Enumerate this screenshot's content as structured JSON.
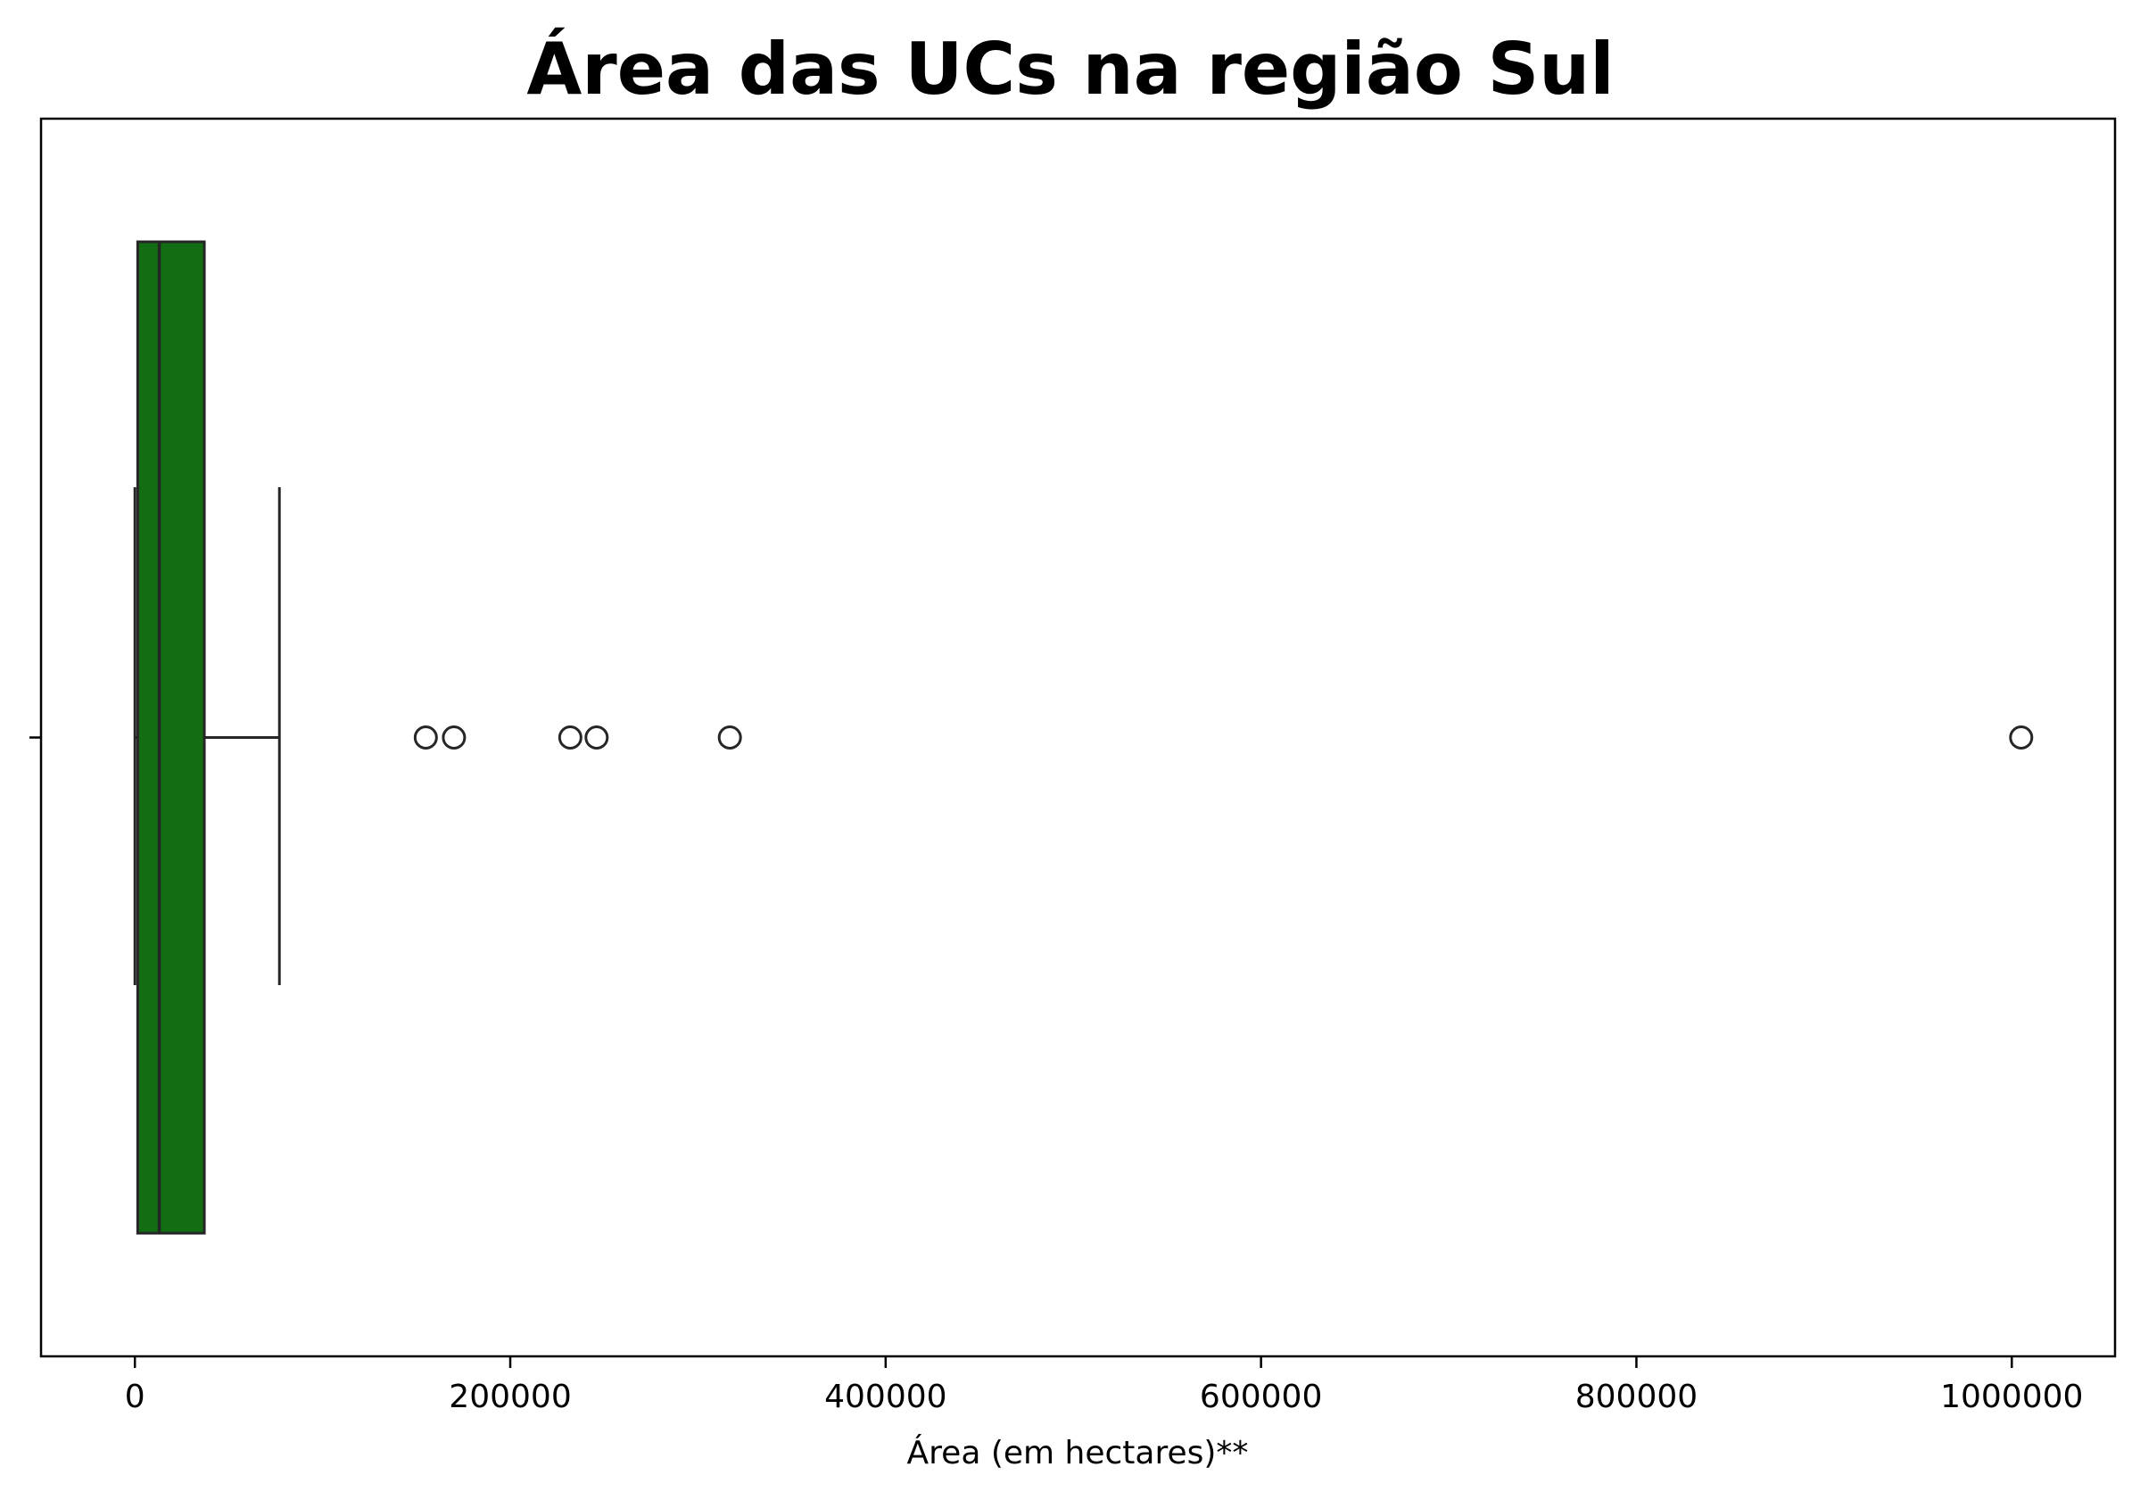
{
  "chart_data": {
    "type": "boxplot",
    "orientation": "horizontal",
    "title": "Área das UCs na região Sul",
    "xlabel": "Área (em hectares)**",
    "ylabel": "",
    "xlim": [
      -50000,
      1055000
    ],
    "xticks": [
      0,
      200000,
      400000,
      600000,
      800000,
      1000000
    ],
    "xtick_labels": [
      "0",
      "200000",
      "400000",
      "600000",
      "800000",
      "1000000"
    ],
    "grid": false,
    "legend": "none",
    "box": {
      "whisker_low": 0,
      "q1": 1500,
      "median": 13000,
      "q3": 37000,
      "whisker_high": 77000,
      "outliers": [
        155000,
        170000,
        232000,
        246000,
        317000,
        1005000
      ]
    },
    "colors": {
      "box_fill": "#136e13",
      "line": "#262626",
      "axes": "#000000"
    }
  }
}
